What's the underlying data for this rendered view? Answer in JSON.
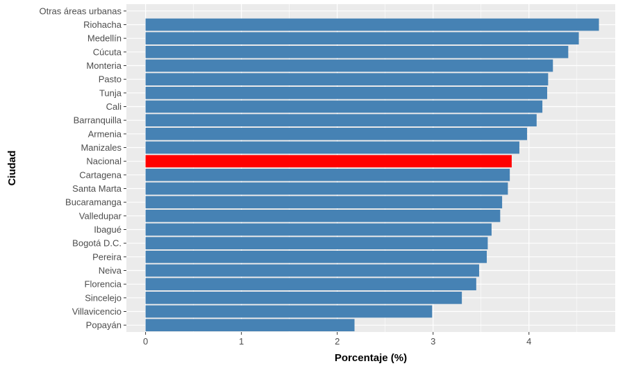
{
  "chart_data": {
    "type": "bar",
    "orientation": "horizontal",
    "xlabel": "Porcentaje (%)",
    "ylabel": "Ciudad",
    "xlim": [
      -0.2,
      4.9
    ],
    "xticks": [
      0,
      1,
      2,
      3,
      4
    ],
    "grid": true,
    "legend": "none",
    "colors": {
      "default": "#4682b4",
      "highlight": "#ff0000",
      "panel": "#ebebeb",
      "grid": "#ffffff"
    },
    "highlight": "Nacional",
    "categories": [
      "Otras áreas urbanas",
      "Riohacha",
      "Medellín",
      "Cúcuta",
      "Monteria",
      "Pasto",
      "Tunja",
      "Cali",
      "Barranquilla",
      "Armenia",
      "Manizales",
      "Nacional",
      "Cartagena",
      "Santa Marta",
      "Bucaramanga",
      "Valledupar",
      "Ibagué",
      "Bogotá D.C.",
      "Pereira",
      "Neiva",
      "Florencia",
      "Sincelejo",
      "Villavicencio",
      "Popayán"
    ],
    "values": [
      null,
      4.73,
      4.52,
      4.41,
      4.25,
      4.2,
      4.19,
      4.14,
      4.08,
      3.98,
      3.9,
      3.82,
      3.8,
      3.78,
      3.72,
      3.7,
      3.61,
      3.57,
      3.56,
      3.48,
      3.45,
      3.3,
      2.99,
      2.18
    ]
  }
}
